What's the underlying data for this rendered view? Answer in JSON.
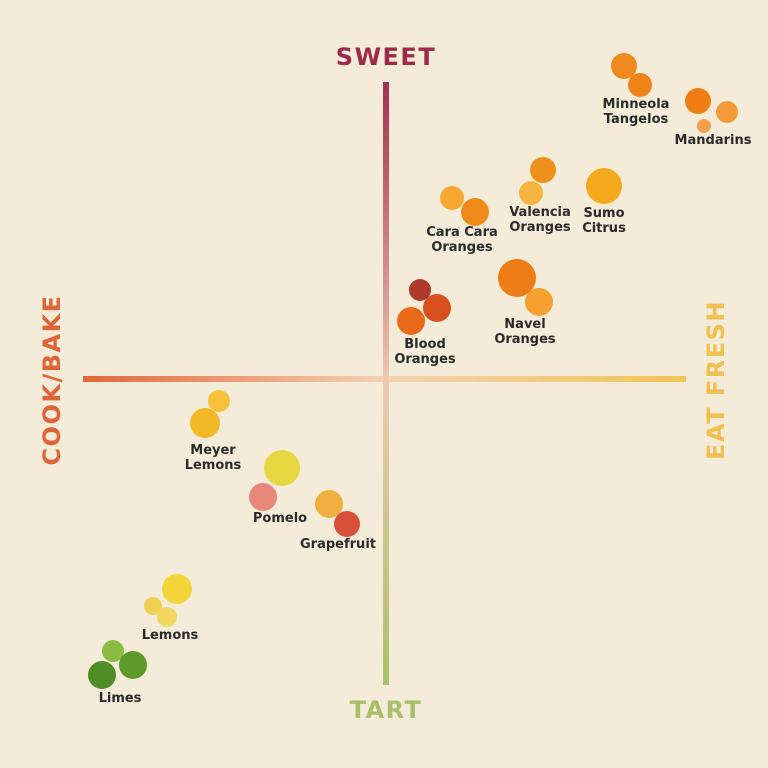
{
  "axes": {
    "top": "SWEET",
    "bottom": "TART",
    "left": "COOK/BAKE",
    "right": "EAT FRESH"
  },
  "fruits": [
    {
      "lines": [
        "Minneola",
        "Tangelos"
      ]
    },
    {
      "lines": [
        "Mandarins"
      ]
    },
    {
      "lines": [
        "Valencia",
        "Oranges"
      ]
    },
    {
      "lines": [
        "Sumo",
        "Citrus"
      ]
    },
    {
      "lines": [
        "Cara Cara",
        "Oranges"
      ]
    },
    {
      "lines": [
        "Navel",
        "Oranges"
      ]
    },
    {
      "lines": [
        "Blood",
        "Oranges"
      ]
    },
    {
      "lines": [
        "Meyer",
        "Lemons"
      ]
    },
    {
      "lines": [
        "Pomelo"
      ]
    },
    {
      "lines": [
        "Grapefruit"
      ]
    },
    {
      "lines": [
        "Lemons"
      ]
    },
    {
      "lines": [
        "Limes"
      ]
    }
  ]
}
